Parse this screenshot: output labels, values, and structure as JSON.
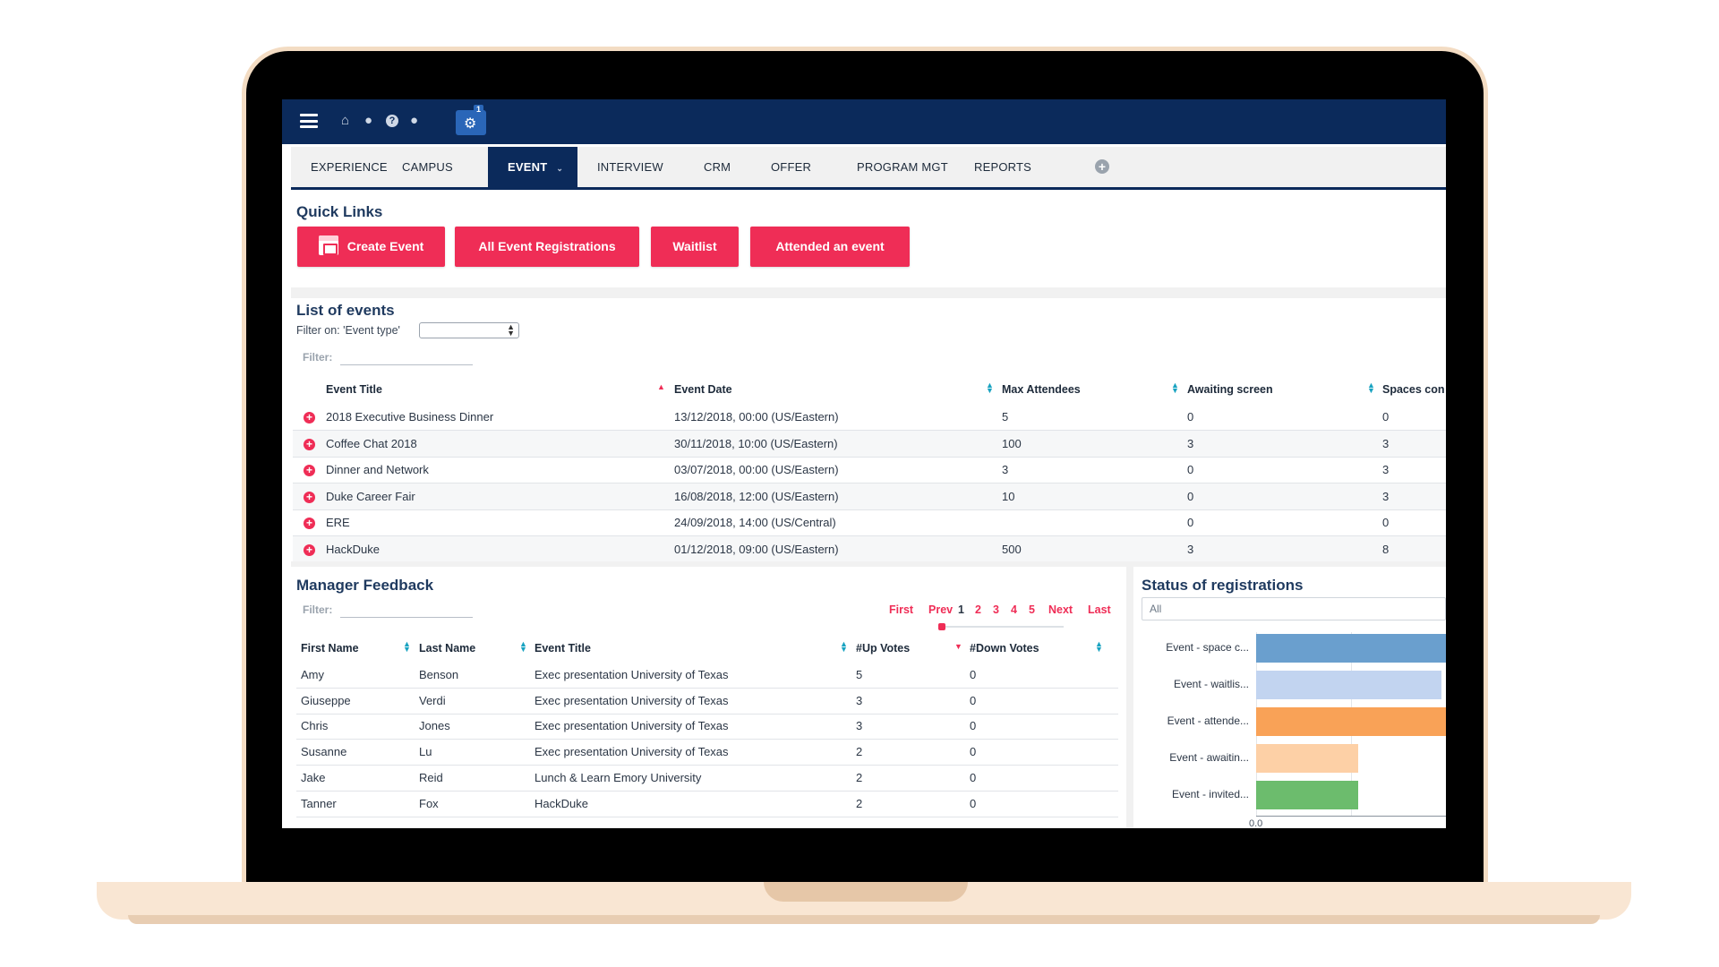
{
  "topbar": {
    "icons": [
      "home-icon",
      "user-icon",
      "help-icon",
      "chat-icon"
    ],
    "settings_badge": "1"
  },
  "tabs": [
    {
      "label": "EXPERIENCE"
    },
    {
      "label": "CAMPUS"
    },
    {
      "label": "EVENT",
      "active": true
    },
    {
      "label": "INTERVIEW"
    },
    {
      "label": "CRM"
    },
    {
      "label": "OFFER"
    },
    {
      "label": "PROGRAM MGT"
    },
    {
      "label": "REPORTS"
    }
  ],
  "quick_links": {
    "title": "Quick Links",
    "buttons": [
      "Create Event",
      "All Event Registrations",
      "Waitlist",
      "Attended an event"
    ]
  },
  "events": {
    "title": "List of events",
    "filter_on_label": "Filter on: 'Event type'",
    "filter_label": "Filter:",
    "columns": [
      "Event Title",
      "Event Date",
      "Max Attendees",
      "Awaiting screen",
      "Spaces con"
    ],
    "rows": [
      {
        "title": "2018 Executive Business Dinner",
        "date": "13/12/2018, 00:00 (US/Eastern)",
        "max": "5",
        "awaiting": "0",
        "spaces": "0"
      },
      {
        "title": "Coffee Chat 2018",
        "date": "30/11/2018, 10:00 (US/Eastern)",
        "max": "100",
        "awaiting": "3",
        "spaces": "3"
      },
      {
        "title": "Dinner and Network",
        "date": "03/07/2018, 00:00 (US/Eastern)",
        "max": "3",
        "awaiting": "0",
        "spaces": "3"
      },
      {
        "title": "Duke Career Fair",
        "date": "16/08/2018, 12:00 (US/Eastern)",
        "max": "10",
        "awaiting": "0",
        "spaces": "3"
      },
      {
        "title": "ERE",
        "date": "24/09/2018, 14:00 (US/Central)",
        "max": "",
        "awaiting": "0",
        "spaces": "0"
      },
      {
        "title": "HackDuke",
        "date": "01/12/2018, 09:00 (US/Eastern)",
        "max": "500",
        "awaiting": "3",
        "spaces": "8"
      }
    ]
  },
  "feedback": {
    "title": "Manager Feedback",
    "filter_label": "Filter:",
    "pager": {
      "first": "First",
      "prev": "Prev",
      "pages": [
        "1",
        "2",
        "3",
        "4",
        "5"
      ],
      "next": "Next",
      "last": "Last"
    },
    "columns": [
      "First Name",
      "Last Name",
      "Event Title",
      "#Up Votes",
      "#Down Votes"
    ],
    "rows": [
      {
        "first": "Amy",
        "last": "Benson",
        "event": "Exec presentation University of Texas",
        "up": "5",
        "down": "0"
      },
      {
        "first": "Giuseppe",
        "last": "Verdi",
        "event": "Exec presentation University of Texas",
        "up": "3",
        "down": "0"
      },
      {
        "first": "Chris",
        "last": "Jones",
        "event": "Exec presentation University of Texas",
        "up": "3",
        "down": "0"
      },
      {
        "first": "Susanne",
        "last": "Lu",
        "event": "Exec presentation University of Texas",
        "up": "2",
        "down": "0"
      },
      {
        "first": "Jake",
        "last": "Reid",
        "event": "Lunch & Learn Emory University",
        "up": "2",
        "down": "0"
      },
      {
        "first": "Tanner",
        "last": "Fox",
        "event": "HackDuke",
        "up": "2",
        "down": "0"
      }
    ]
  },
  "status": {
    "title": "Status of registrations",
    "select_value": "All",
    "chart_data": {
      "type": "bar",
      "orientation": "horizontal",
      "categories": [
        "Event - space c...",
        "Event - waitlis...",
        "Event - attende...",
        "Event - awaitin...",
        "Event - invited..."
      ],
      "values": [
        8,
        7.8,
        8,
        4.3,
        4.3
      ],
      "colors": [
        "#6a9fce",
        "#c2d4f0",
        "#f9a257",
        "#fdd0a6",
        "#6cbc6d"
      ],
      "xtick_first": "0.0",
      "xlim": [
        0,
        8
      ]
    }
  }
}
